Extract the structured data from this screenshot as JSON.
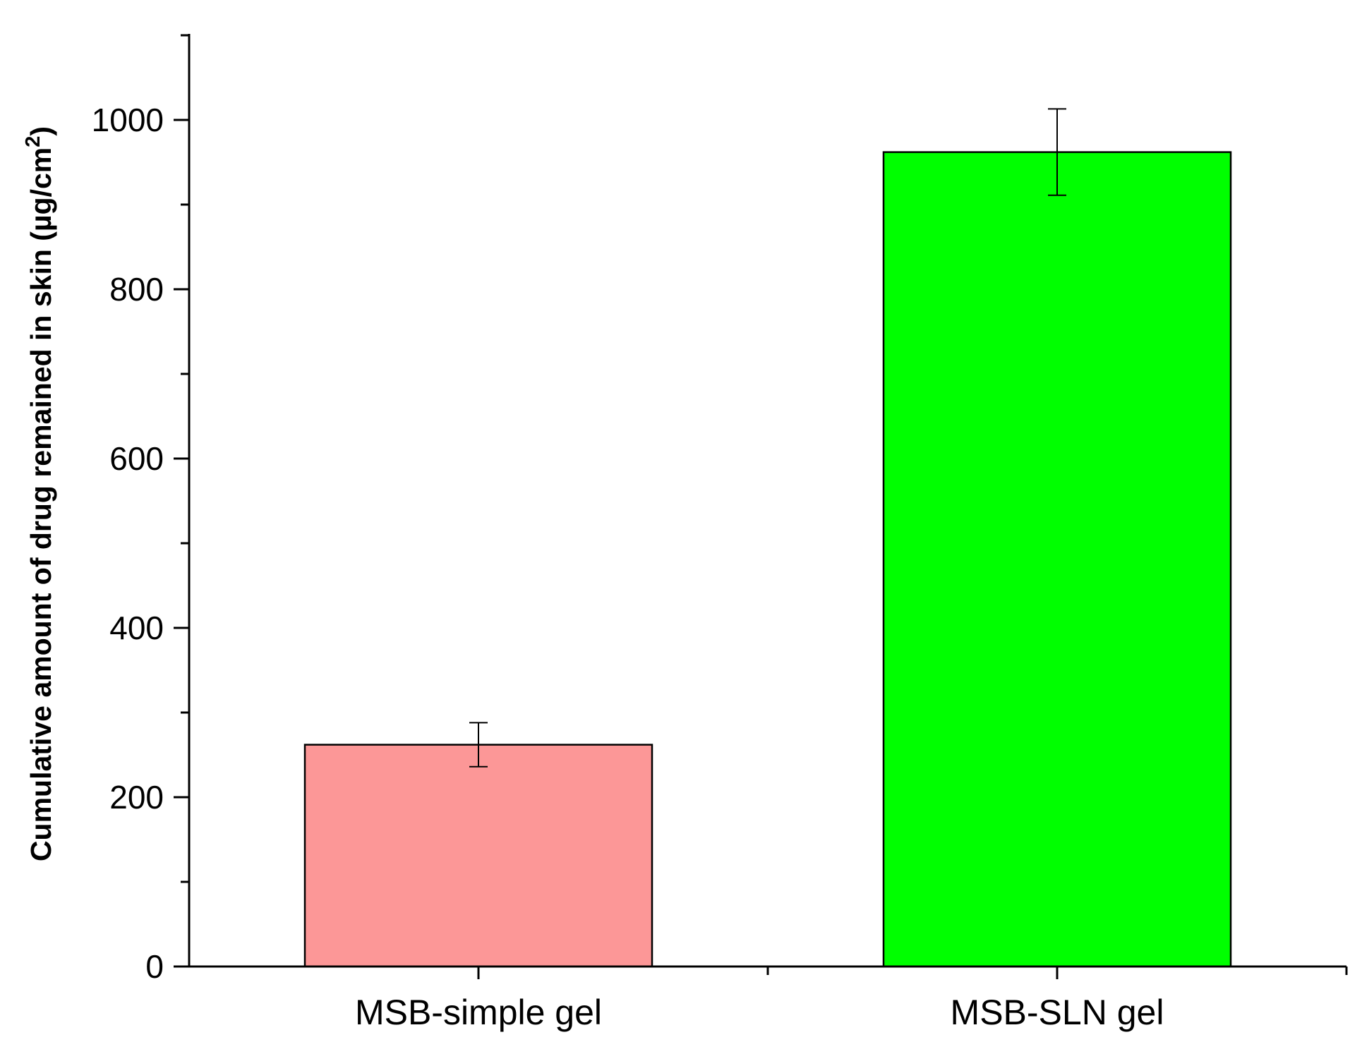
{
  "chart_data": {
    "type": "bar",
    "title": "",
    "xlabel": "",
    "ylabel": "Cumulative amount of drug remained in skin (µg/cm",
    "ylabel_superscript": "2",
    "ylabel_suffix": ")",
    "categories": [
      "MSB-simple gel",
      "MSB-SLN gel"
    ],
    "values": [
      262,
      962
    ],
    "error": [
      26,
      51
    ],
    "bar_colors": [
      "#fc9797",
      "#00ff00"
    ],
    "ylim": [
      0,
      1100
    ],
    "yticks": [
      0,
      200,
      400,
      600,
      800,
      1000
    ],
    "ytick_labels": [
      "0",
      "200",
      "400",
      "600",
      "800",
      "1000"
    ],
    "yminor_ticks": [
      100,
      300,
      500,
      700,
      900,
      1100
    ],
    "grid": false,
    "legend": "none"
  }
}
